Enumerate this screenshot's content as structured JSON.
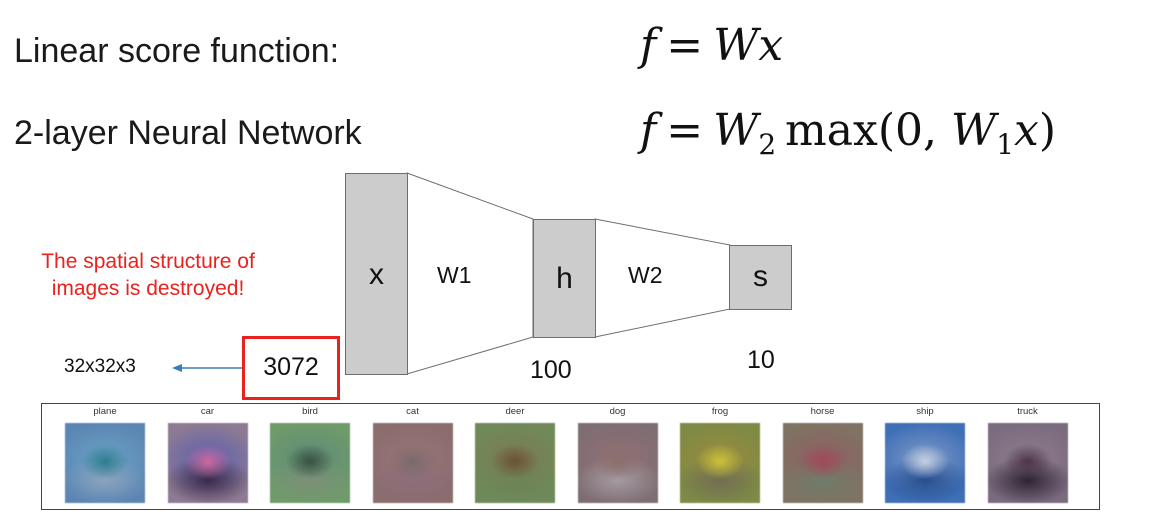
{
  "labels": {
    "linear": "Linear score function:",
    "twolayer": "2-layer Neural Network"
  },
  "formula1": {
    "f": "f",
    "eq": "=",
    "W": "W",
    "x": "x"
  },
  "formula2": {
    "f": "f",
    "eq": "=",
    "W2": "W",
    "sub2": "2",
    "max": "max",
    "open": "(0, ",
    "W1": "W",
    "sub1": "1",
    "x": "x",
    "close": ")"
  },
  "note": {
    "line1": "The spatial structure of",
    "line2": "images is destroyed!"
  },
  "diagram": {
    "x": "x",
    "w1": "W1",
    "h": "h",
    "w2": "W2",
    "s": "s",
    "input_size": "3072",
    "hidden_size": "100",
    "output_size": "10",
    "image_shape": "32x32x3"
  },
  "colors": {
    "red": "#e8231e",
    "arrow": "#3a7fb6",
    "box_fill": "#cccccc"
  },
  "templates": [
    {
      "name": "plane",
      "bg": "#5b86b3",
      "mid": "#6aa3c5",
      "center": "#2f7c8f",
      "low": "#8aa2bd"
    },
    {
      "name": "car",
      "bg": "#8e7b93",
      "mid": "#5a5fb0",
      "center": "#d06a9e",
      "low": "#3a2a4a"
    },
    {
      "name": "bird",
      "bg": "#6f9a6a",
      "mid": "#5e8c7a",
      "center": "#39523f",
      "low": "#7d9178"
    },
    {
      "name": "cat",
      "bg": "#8a6d6e",
      "mid": "#9a7478",
      "center": "#7a6a6c",
      "low": "#8d6e7a"
    },
    {
      "name": "deer",
      "bg": "#6f8a58",
      "mid": "#7d7a55",
      "center": "#6b5236",
      "low": "#6d8457"
    },
    {
      "name": "dog",
      "bg": "#7e6e72",
      "mid": "#927076",
      "center": "#8a6f6c",
      "low": "#a39aa2"
    },
    {
      "name": "frog",
      "bg": "#7e8a45",
      "mid": "#9a8a3e",
      "center": "#cbc33a",
      "low": "#6e6e54"
    },
    {
      "name": "horse",
      "bg": "#7f7363",
      "mid": "#8f5e63",
      "center": "#a04a5a",
      "low": "#6f7d6a"
    },
    {
      "name": "ship",
      "bg": "#3f6fb7",
      "mid": "#7e9ac6",
      "center": "#c6cfe3",
      "low": "#274f8f"
    },
    {
      "name": "truck",
      "bg": "#7b6b7e",
      "mid": "#8d7d8c",
      "center": "#4e3447",
      "low": "#2c2332"
    }
  ]
}
